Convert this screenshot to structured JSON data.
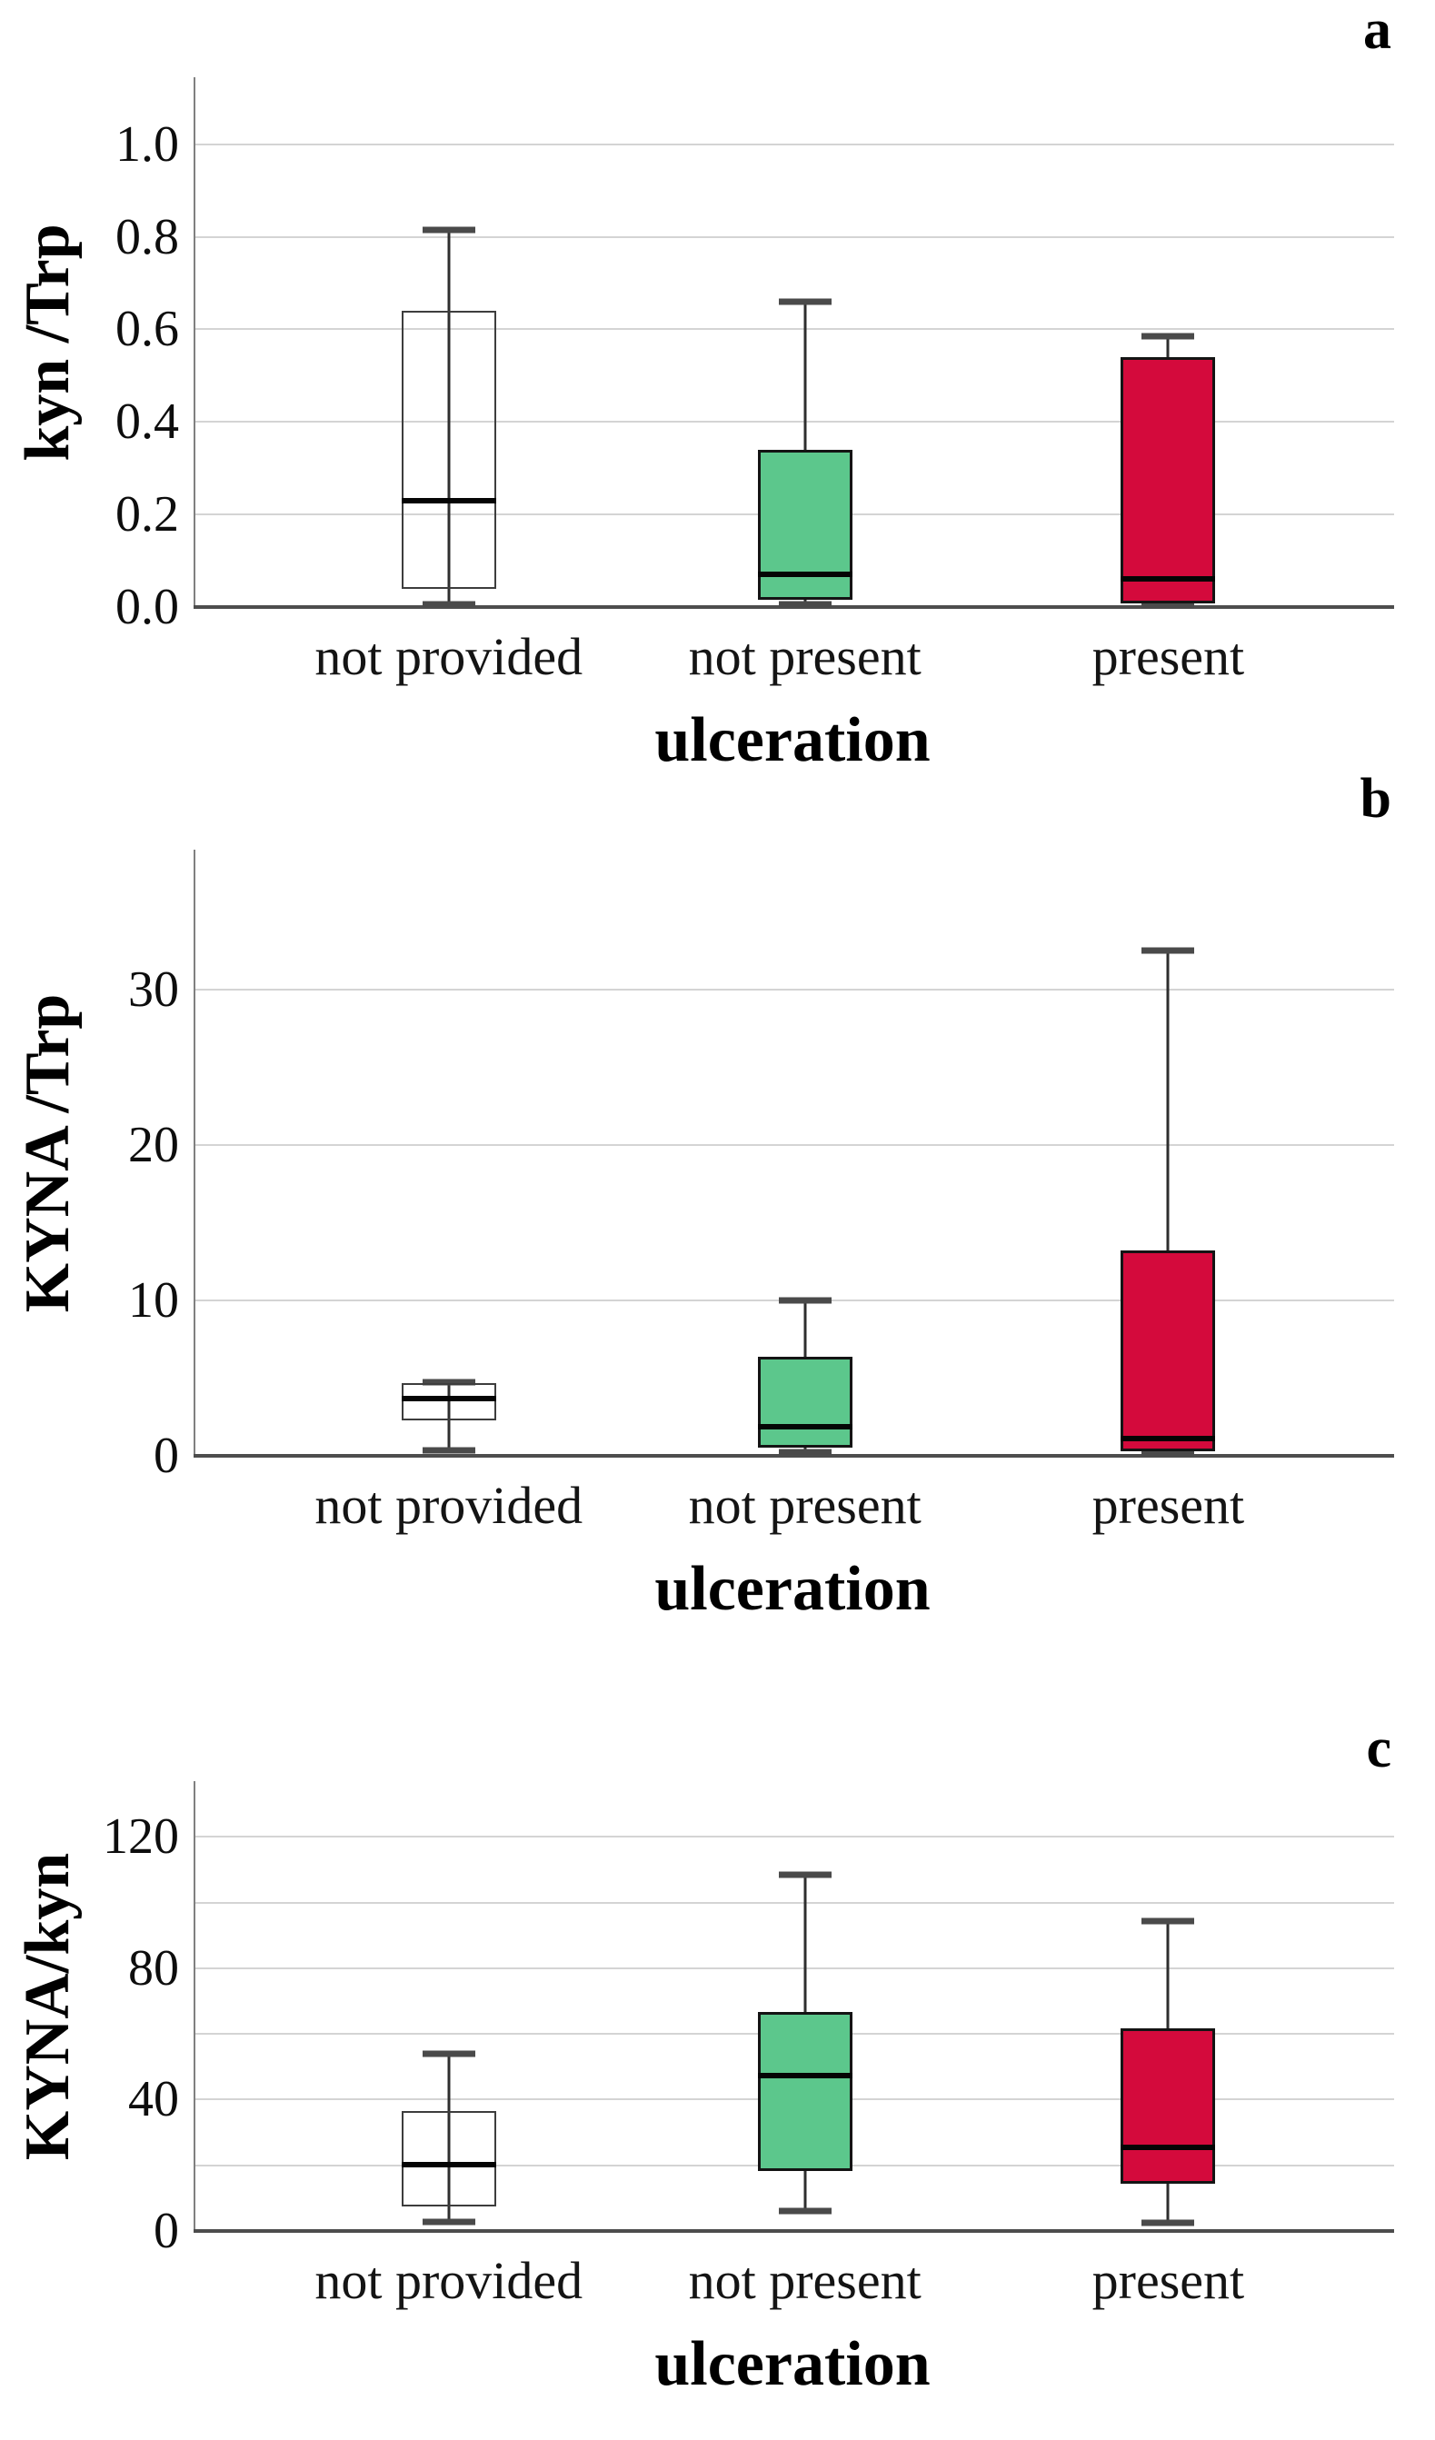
{
  "figure": {
    "x_axis_title": "ulceration",
    "categories": [
      "not provided",
      "not present",
      "present"
    ],
    "panel_letters": [
      "a",
      "b",
      "c"
    ],
    "colors": {
      "not_provided_fill": "transparent",
      "not_present_fill": "#5cc78c",
      "present_fill": "#d40a3c",
      "box_border": "#141414",
      "median": "#050505",
      "whisker": "#2e2e2e",
      "whisker_cap": "#4a4a4a",
      "gridline": "#d4d4d4",
      "y_axis_line": "#808080",
      "baseline": "#4d4d4d"
    }
  },
  "chart_data": [
    {
      "type": "box",
      "panel_label": "a",
      "ylabel": "kyn /Trp",
      "xlabel": "ulceration",
      "categories": [
        "not provided",
        "not present",
        "present"
      ],
      "ylim": [
        0,
        1.145
      ],
      "grid": true,
      "gridlines": [
        0.2,
        0.4,
        0.6,
        0.8,
        1.0
      ],
      "y_ticks": [
        {
          "value": 1.0,
          "label": "1.0"
        },
        {
          "value": 0.8,
          "label": "0.8"
        },
        {
          "value": 0.6,
          "label": "0.6"
        },
        {
          "value": 0.4,
          "label": "0.4"
        },
        {
          "value": 0.2,
          "label": "0.2"
        },
        {
          "value": 0.0,
          "label": "0.0"
        }
      ],
      "series": [
        {
          "category": "not provided",
          "min": 0.005,
          "q1": 0.04,
          "median": 0.23,
          "q3": 0.64,
          "max": 0.815,
          "fill": "transparent"
        },
        {
          "category": "not present",
          "min": 0.005,
          "q1": 0.015,
          "median": 0.07,
          "q3": 0.34,
          "max": 0.66,
          "fill": "#5cc78c"
        },
        {
          "category": "present",
          "min": 0.003,
          "q1": 0.008,
          "median": 0.06,
          "q3": 0.54,
          "max": 0.585,
          "fill": "#d40a3c"
        }
      ]
    },
    {
      "type": "box",
      "panel_label": "b",
      "ylabel": "KYNA /Trp",
      "xlabel": "ulceration",
      "categories": [
        "not provided",
        "not present",
        "present"
      ],
      "ylim": [
        0,
        39
      ],
      "grid": true,
      "gridlines": [
        10,
        20,
        30
      ],
      "y_ticks": [
        {
          "value": 30,
          "label": "30"
        },
        {
          "value": 20,
          "label": "20"
        },
        {
          "value": 10,
          "label": "10"
        },
        {
          "value": 0,
          "label": "0"
        }
      ],
      "series": [
        {
          "category": "not provided",
          "min": 0.35,
          "q1": 2.3,
          "median": 3.7,
          "q3": 4.7,
          "max": 4.75,
          "fill": "transparent"
        },
        {
          "category": "not present",
          "min": 0.25,
          "q1": 0.55,
          "median": 1.9,
          "q3": 6.4,
          "max": 10.0,
          "fill": "#5cc78c"
        },
        {
          "category": "present",
          "min": 0.2,
          "q1": 0.3,
          "median": 1.1,
          "q3": 13.2,
          "max": 32.5,
          "fill": "#d40a3c"
        }
      ]
    },
    {
      "type": "box",
      "panel_label": "c",
      "ylabel": "KYNA/kyn",
      "xlabel": "ulceration",
      "categories": [
        "not provided",
        "not present",
        "present"
      ],
      "ylim": [
        0,
        137
      ],
      "grid": true,
      "gridlines": [
        20,
        40,
        60,
        80,
        100,
        120
      ],
      "y_ticks": [
        {
          "value": 120,
          "label": "120"
        },
        {
          "value": 80,
          "label": "80"
        },
        {
          "value": 40,
          "label": "40"
        },
        {
          "value": 0,
          "label": "0"
        }
      ],
      "series": [
        {
          "category": "not provided",
          "min": 2.8,
          "q1": 7.5,
          "median": 20.3,
          "q3": 36.5,
          "max": 54.0,
          "fill": "transparent"
        },
        {
          "category": "not present",
          "min": 6.0,
          "q1": 18.3,
          "median": 47.3,
          "q3": 66.8,
          "max": 108.5,
          "fill": "#5cc78c"
        },
        {
          "category": "present",
          "min": 2.5,
          "q1": 14.5,
          "median": 25.4,
          "q3": 61.8,
          "max": 94.5,
          "fill": "#d40a3c"
        }
      ]
    }
  ]
}
